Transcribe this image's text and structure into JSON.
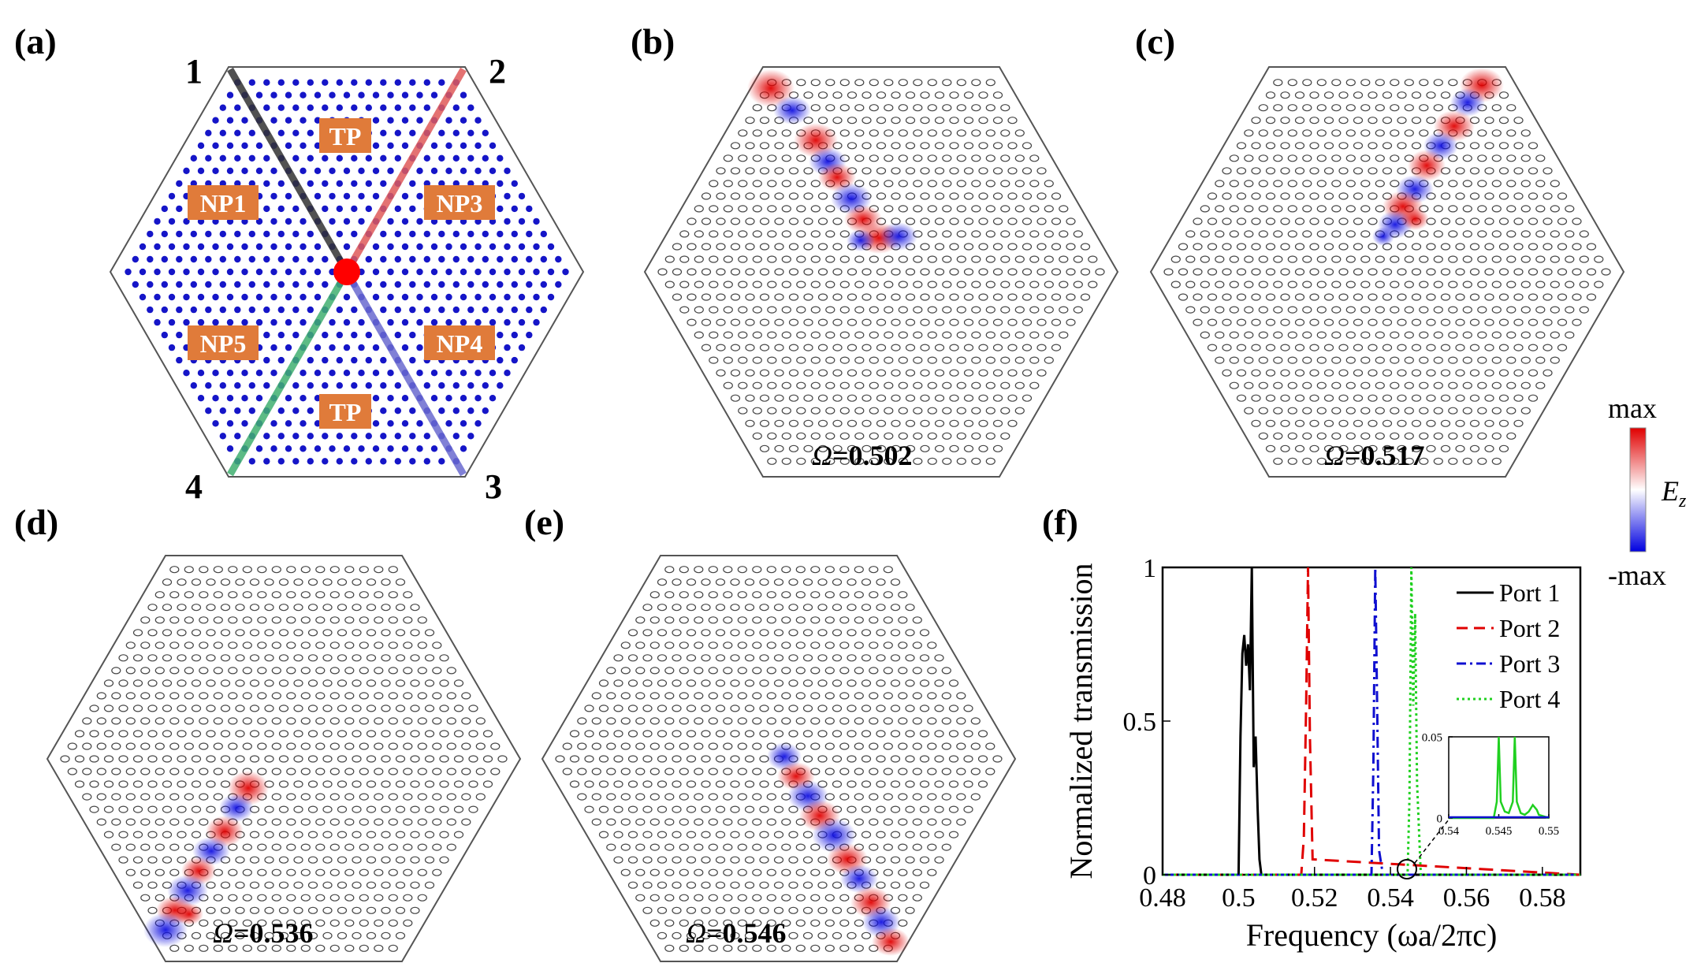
{
  "panels": {
    "a": {
      "label": "(a)",
      "ports": [
        "1",
        "2",
        "3",
        "4"
      ],
      "regions": [
        "TP",
        "NP1",
        "NP3",
        "NP5",
        "NP4",
        "TP"
      ]
    },
    "b": {
      "label": "(b)",
      "omega_symbol": "Ω",
      "omega_value": "=0.502"
    },
    "c": {
      "label": "(c)",
      "omega_symbol": "Ω",
      "omega_value": "=0.517"
    },
    "d": {
      "label": "(d)",
      "omega_symbol": "Ω",
      "omega_value": "=0.536"
    },
    "e": {
      "label": "(e)",
      "omega_symbol": "Ω",
      "omega_value": "=0.546"
    },
    "f": {
      "label": "(f)"
    }
  },
  "colorbar": {
    "max_label": "max",
    "min_label": "-max",
    "field_label": "E",
    "field_sub": "z"
  },
  "colors": {
    "port1": "#000000",
    "port2": "#e00000",
    "port3": "#1010d0",
    "port4": "#20d020",
    "rod": "#1515c8",
    "region_box": "#e07b3a"
  },
  "chart_data": [
    {
      "type": "line",
      "title": "",
      "xlabel": "Frequency (ωa/2πc)",
      "ylabel": "Normalized transmission",
      "xlim": [
        0.48,
        0.59
      ],
      "ylim": [
        0,
        1
      ],
      "xticks": [
        "0.48",
        "0.5",
        "0.52",
        "0.54",
        "0.56",
        "0.58"
      ],
      "yticks": [
        "0",
        "0.5",
        "1"
      ],
      "legend": "top-right",
      "series": [
        {
          "name": "Port 1",
          "style": "solid",
          "x": [
            0.48,
            0.5,
            0.5005,
            0.501,
            0.5015,
            0.502,
            0.5025,
            0.503,
            0.5035,
            0.504,
            0.5045,
            0.505,
            0.5055,
            0.506,
            0.59
          ],
          "y": [
            0,
            0,
            0.45,
            0.72,
            0.78,
            0.68,
            0.75,
            0.6,
            1.0,
            0.35,
            0.45,
            0.22,
            0.05,
            0,
            0
          ]
        },
        {
          "name": "Port 2",
          "style": "dashed",
          "x": [
            0.48,
            0.5165,
            0.5172,
            0.5178,
            0.5183,
            0.5188,
            0.5195,
            0.59
          ],
          "y": [
            0,
            0,
            0.12,
            0.55,
            1.0,
            0.45,
            0.05,
            0
          ]
        },
        {
          "name": "Port 3",
          "style": "dashdot",
          "x": [
            0.48,
            0.535,
            0.5355,
            0.536,
            0.5365,
            0.537,
            0.538,
            0.59
          ],
          "y": [
            0,
            0,
            0.35,
            1.0,
            0.55,
            0.08,
            0,
            0
          ]
        },
        {
          "name": "Port 4",
          "style": "dotted",
          "x": [
            0.48,
            0.5445,
            0.545,
            0.5455,
            0.546,
            0.5465,
            0.547,
            0.548,
            0.59
          ],
          "y": [
            0,
            0,
            0.25,
            1.0,
            0.55,
            0.85,
            0.3,
            0,
            0
          ]
        }
      ]
    },
    {
      "type": "line",
      "title": "",
      "xlabel": "",
      "ylabel": "",
      "xlim": [
        0.54,
        0.55
      ],
      "ylim": [
        0,
        0.05
      ],
      "xticks": [
        "0.54",
        "0.545",
        "0.55"
      ],
      "yticks": [
        "0",
        "0.05"
      ],
      "series": [
        {
          "name": "Port 4",
          "x": [
            0.54,
            0.5445,
            0.5448,
            0.545,
            0.5452,
            0.5456,
            0.546,
            0.5464,
            0.5466,
            0.5468,
            0.5472,
            0.5476,
            0.548,
            0.5484,
            0.5488,
            0.549,
            0.55
          ],
          "y": [
            0,
            0,
            0.01,
            0.05,
            0.01,
            0.004,
            0.003,
            0.01,
            0.05,
            0.01,
            0.003,
            0.002,
            0.004,
            0.008,
            0.005,
            0.002,
            0
          ]
        }
      ]
    }
  ]
}
